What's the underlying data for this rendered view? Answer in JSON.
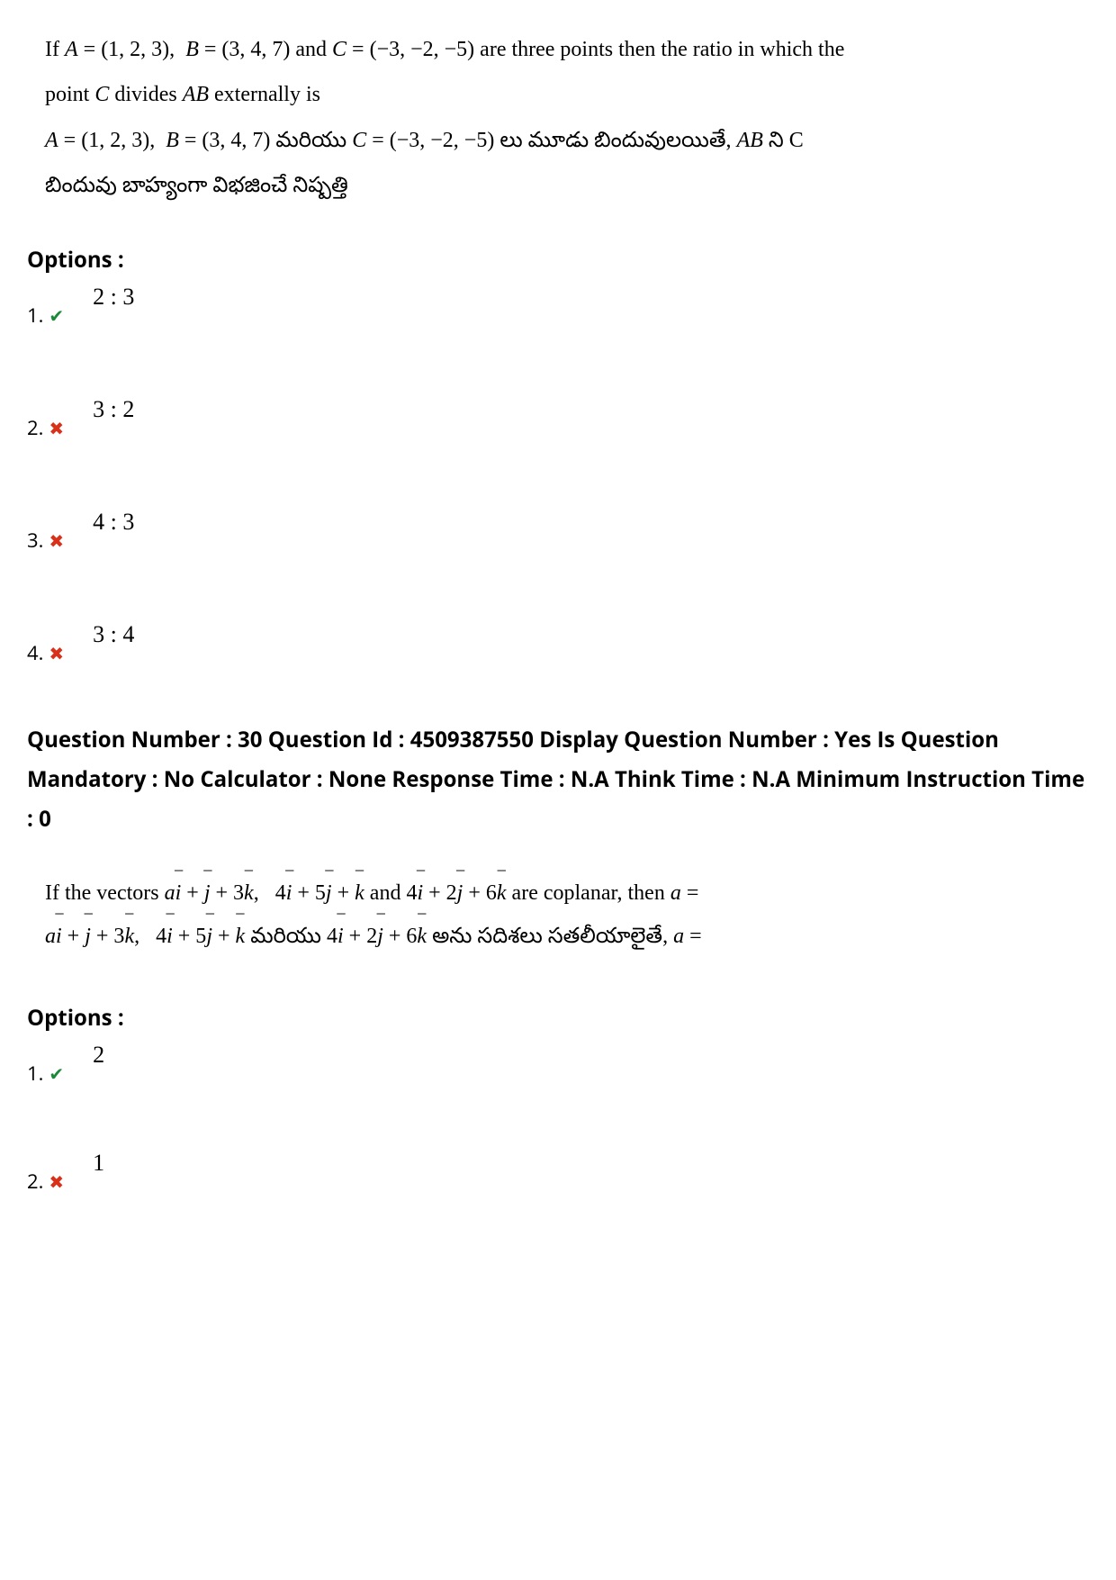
{
  "q29": {
    "line1": "If A = (1, 2, 3),  B = (3, 4, 7) and C = (−3, −2, −5) are three points then the ratio in which the",
    "line2": "point C divides AB externally is",
    "line3": "A = (1, 2, 3),  B = (3, 4, 7) మరియు C = (−3, −2, −5) లు మూడు బిందువులయితే, AB ని C",
    "line4": "బిందువు బాహ్యంగా విభజించే నిష్పత్తి"
  },
  "optionsLabel": "Options :",
  "q29options": [
    {
      "num": "1.",
      "correct": true,
      "text": "2 : 3"
    },
    {
      "num": "2.",
      "correct": false,
      "text": "3 : 2"
    },
    {
      "num": "3.",
      "correct": false,
      "text": "4 : 3"
    },
    {
      "num": "4.",
      "correct": false,
      "text": "3 : 4"
    }
  ],
  "meta": "Question Number : 30 Question Id : 4509387550 Display Question Number : Yes Is Question Mandatory : No Calculator : None Response Time : N.A Think Time : N.A Minimum Instruction Time : 0",
  "q30": {
    "line1": "If the vectors ai̅ + j̅ + 3k̅,   4i̅ + 5j̅ + k̅ and 4i̅ + 2j̅ + 6k̅ are coplanar, then a =",
    "line2": "ai̅ + j̅ + 3k̅,   4i̅ + 5j̅ + k̅ మరియు 4i̅ + 2j̅ + 6k̅ అను సదిశలు సతలీయాలైతే, a ="
  },
  "q30options": [
    {
      "num": "1.",
      "correct": true,
      "text": "2"
    },
    {
      "num": "2.",
      "correct": false,
      "text": "1"
    }
  ],
  "icons": {
    "check": "✔",
    "cross": "✖"
  },
  "colors": {
    "correct": "#1a8a3a",
    "wrong": "#d9301a",
    "text": "#000000",
    "bg": "#ffffff"
  }
}
